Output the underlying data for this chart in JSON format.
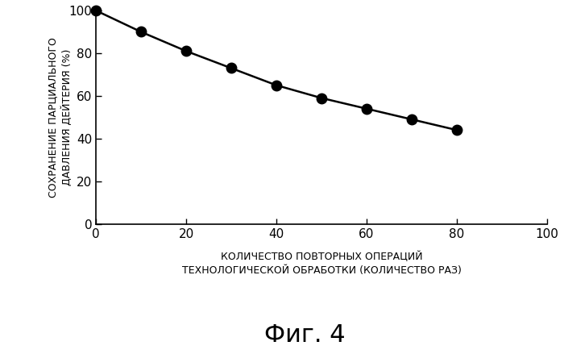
{
  "x": [
    0,
    10,
    20,
    30,
    40,
    50,
    60,
    70,
    80
  ],
  "y": [
    100,
    90,
    81,
    73,
    65,
    59,
    54,
    49,
    44
  ],
  "xlim": [
    0,
    100
  ],
  "ylim": [
    0,
    100
  ],
  "xticks": [
    0,
    20,
    40,
    60,
    80,
    100
  ],
  "yticks": [
    0,
    20,
    40,
    60,
    80,
    100
  ],
  "xlabel_line1": "КОЛИЧЕСТВО ПОВТОРНЫХ ОПЕРАЦИЙ",
  "xlabel_line2": "ТЕХНОЛОГИЧЕСКОЙ ОБРАБОТКИ (КОЛИЧЕСТВО РАЗ)",
  "ylabel_line1": "СОХРАНЕНИЕ ПАРЦИАЛЬНОГО",
  "ylabel_line2": "ДАВЛЕНИЯ ДЕЙТЕРИЯ (%)",
  "figure_label": "Фиг. 4",
  "line_color": "#000000",
  "marker_color": "#000000",
  "background_color": "#ffffff",
  "marker_size": 9,
  "line_width": 1.8,
  "tick_fontsize": 11,
  "ylabel_fontsize": 9,
  "xlabel_fontsize": 9,
  "figlabel_fontsize": 22
}
